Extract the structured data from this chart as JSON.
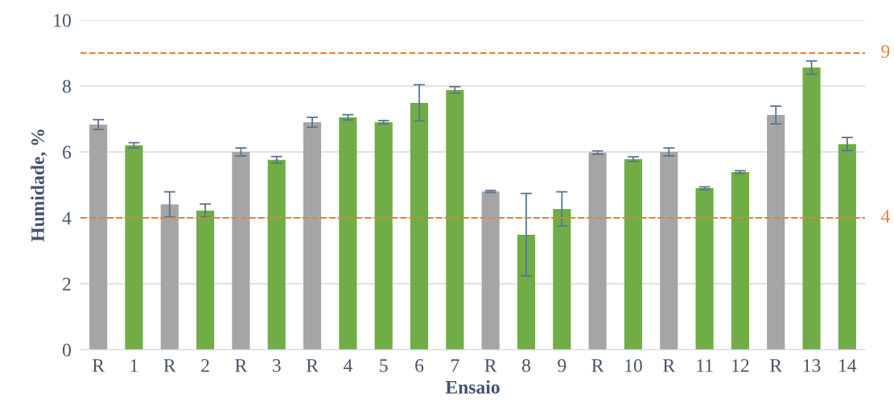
{
  "chart_data": {
    "type": "bar",
    "xlabel": "Ensaio",
    "ylabel": "Humidade, %",
    "categories": [
      "R",
      "1",
      "R",
      "2",
      "R",
      "3",
      "R",
      "4",
      "5",
      "6",
      "7",
      "R",
      "8",
      "9",
      "R",
      "10",
      "R",
      "11",
      "12",
      "R",
      "13",
      "14"
    ],
    "values": [
      6.83,
      6.2,
      4.41,
      4.22,
      6.0,
      5.76,
      6.9,
      7.05,
      6.9,
      7.49,
      7.88,
      4.8,
      3.49,
      4.27,
      5.98,
      5.78,
      6.0,
      4.9,
      5.39,
      7.12,
      8.56,
      6.24
    ],
    "colors": [
      "#a5a5a5",
      "#70ad47",
      "#a5a5a5",
      "#70ad47",
      "#a5a5a5",
      "#70ad47",
      "#a5a5a5",
      "#70ad47",
      "#70ad47",
      "#70ad47",
      "#70ad47",
      "#a5a5a5",
      "#70ad47",
      "#70ad47",
      "#a5a5a5",
      "#70ad47",
      "#a5a5a5",
      "#70ad47",
      "#70ad47",
      "#a5a5a5",
      "#70ad47",
      "#70ad47"
    ],
    "errors": [
      0.15,
      0.08,
      0.38,
      0.2,
      0.12,
      0.1,
      0.15,
      0.08,
      0.05,
      0.55,
      0.1,
      0.03,
      1.25,
      0.52,
      0.05,
      0.07,
      0.12,
      0.04,
      0.04,
      0.27,
      0.2,
      0.2
    ],
    "ylim": [
      0,
      10
    ],
    "yticks": [
      0,
      2,
      4,
      6,
      8,
      10
    ],
    "grid": "y",
    "ref_lines": [
      {
        "axis": "y",
        "value": 9,
        "label": "9",
        "color": "#ed7d31",
        "line_style": "dashed"
      },
      {
        "axis": "y",
        "value": 4,
        "label": "4",
        "color": "#ed7d31",
        "line_style": "dashed"
      }
    ]
  }
}
